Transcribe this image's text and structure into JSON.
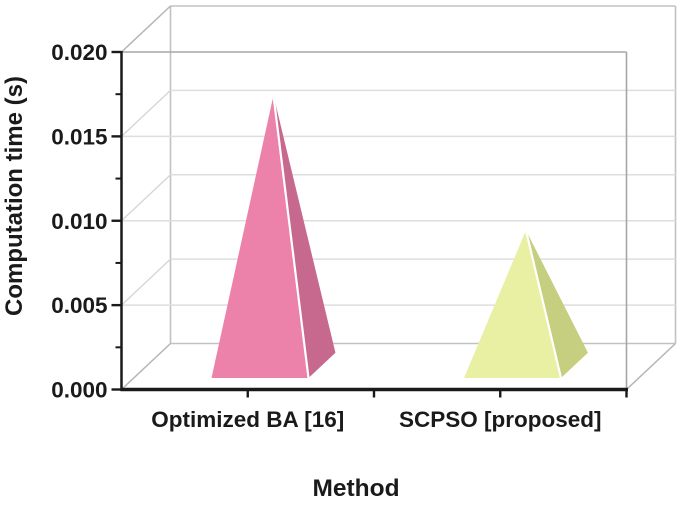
{
  "figure": {
    "background": "#ffffff",
    "description": "3D pyramid bar chart comparing computation time of two methods"
  },
  "chart_data": {
    "type": "bar",
    "bar_shape": "3d-pyramid",
    "projection": "3d-oblique",
    "title": "",
    "xlabel": "Method",
    "ylabel": "Computation time (s)",
    "categories": [
      "Optimized BA [16]",
      "SCPSO [proposed]"
    ],
    "values": [
      0.016,
      0.008
    ],
    "series": [
      {
        "name": "Optimized BA [16]",
        "value": 0.016,
        "front_color": "#ec81aa",
        "side_color": "#c7688f"
      },
      {
        "name": "SCPSO [proposed]",
        "value": 0.008,
        "front_color": "#e9f0a3",
        "side_color": "#c6ce80"
      }
    ],
    "ylim": [
      0,
      0.02
    ],
    "ytick_step": 0.005,
    "ytick_labels": [
      "0.000",
      "0.005",
      "0.010",
      "0.015",
      "0.020"
    ],
    "grid": true,
    "legend": "none"
  },
  "colors": {
    "axis": "#1a1a1a",
    "text": "#1a1a1a",
    "gridline": "#dedede",
    "leftwall_gridline": "#d4d4d4",
    "back_frame": "#c2c2c2",
    "front_frame": "#a6a6a6",
    "corner_diagonal": "#b5b5b5",
    "bar_edge_highlight": "#ffffff",
    "background": "#ffffff"
  }
}
